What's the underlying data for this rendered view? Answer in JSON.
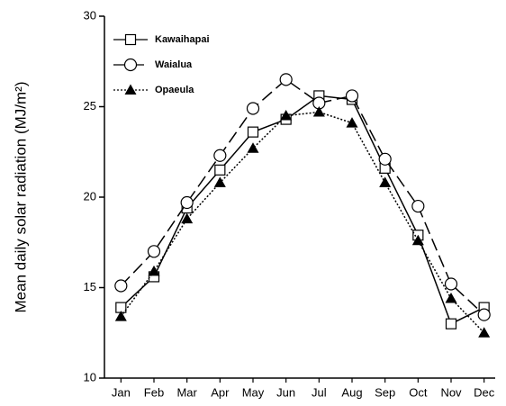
{
  "chart_data": {
    "type": "line",
    "y_label": "Mean daily solar radiation (MJ/m²)",
    "categories": [
      "Jan",
      "Feb",
      "Mar",
      "Apr",
      "May",
      "Jun",
      "Jul",
      "Aug",
      "Sep",
      "Oct",
      "Nov",
      "Dec"
    ],
    "series": [
      {
        "name": "Kawaihapai",
        "color": "#000000",
        "marker": "square",
        "line_style": "solid",
        "values": [
          13.9,
          15.6,
          19.4,
          21.5,
          23.6,
          24.3,
          25.6,
          25.4,
          21.6,
          17.9,
          13.0,
          13.9
        ]
      },
      {
        "name": "Waialua",
        "color": "#000000",
        "marker": "circle",
        "line_style": "dashed",
        "values": [
          15.1,
          17.0,
          19.7,
          22.3,
          24.9,
          26.5,
          25.2,
          25.6,
          22.1,
          19.5,
          15.2,
          13.5
        ]
      },
      {
        "name": "Opaeula",
        "color": "#000000",
        "marker": "triangle",
        "line_style": "dotted",
        "values": [
          13.4,
          15.9,
          18.8,
          20.8,
          22.7,
          24.5,
          24.7,
          24.1,
          20.8,
          17.6,
          14.4,
          12.5
        ]
      }
    ],
    "ylim": [
      10,
      30
    ],
    "yticks": [
      10,
      15,
      20,
      25,
      30
    ],
    "legend": "upper left",
    "grid": false
  }
}
